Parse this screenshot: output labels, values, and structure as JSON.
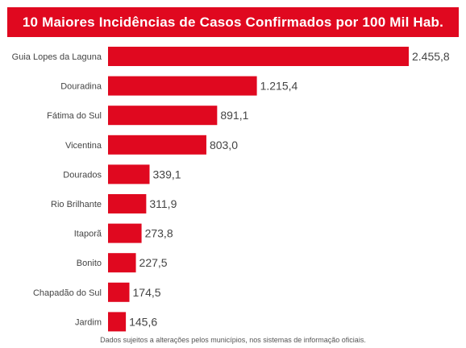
{
  "chart_data": {
    "type": "bar",
    "orientation": "horizontal",
    "title": "10 Maiores Incidências de Casos Confirmados por 100 Mil Hab.",
    "categories": [
      "Guia Lopes da Laguna",
      "Douradina",
      "Fátima do Sul",
      "Vicentina",
      "Dourados",
      "Rio Brilhante",
      "Itaporã",
      "Bonito",
      "Chapadão do Sul",
      "Jardim"
    ],
    "values": [
      2455.8,
      1215.4,
      891.1,
      803.0,
      339.1,
      311.9,
      273.8,
      227.5,
      174.5,
      145.6
    ],
    "value_labels": [
      "2.455,8",
      "1.215,4",
      "891,1",
      "803,0",
      "339,1",
      "311,9",
      "273,8",
      "227,5",
      "174,5",
      "145,6"
    ],
    "xlim": [
      0,
      2455.8
    ],
    "grid": false,
    "bar_color": "#e0081f",
    "title_bg_color": "#e0081f"
  },
  "footnote": "Dados sujeitos a alterações pelos municípios, nos sistemas de informação oficiais."
}
